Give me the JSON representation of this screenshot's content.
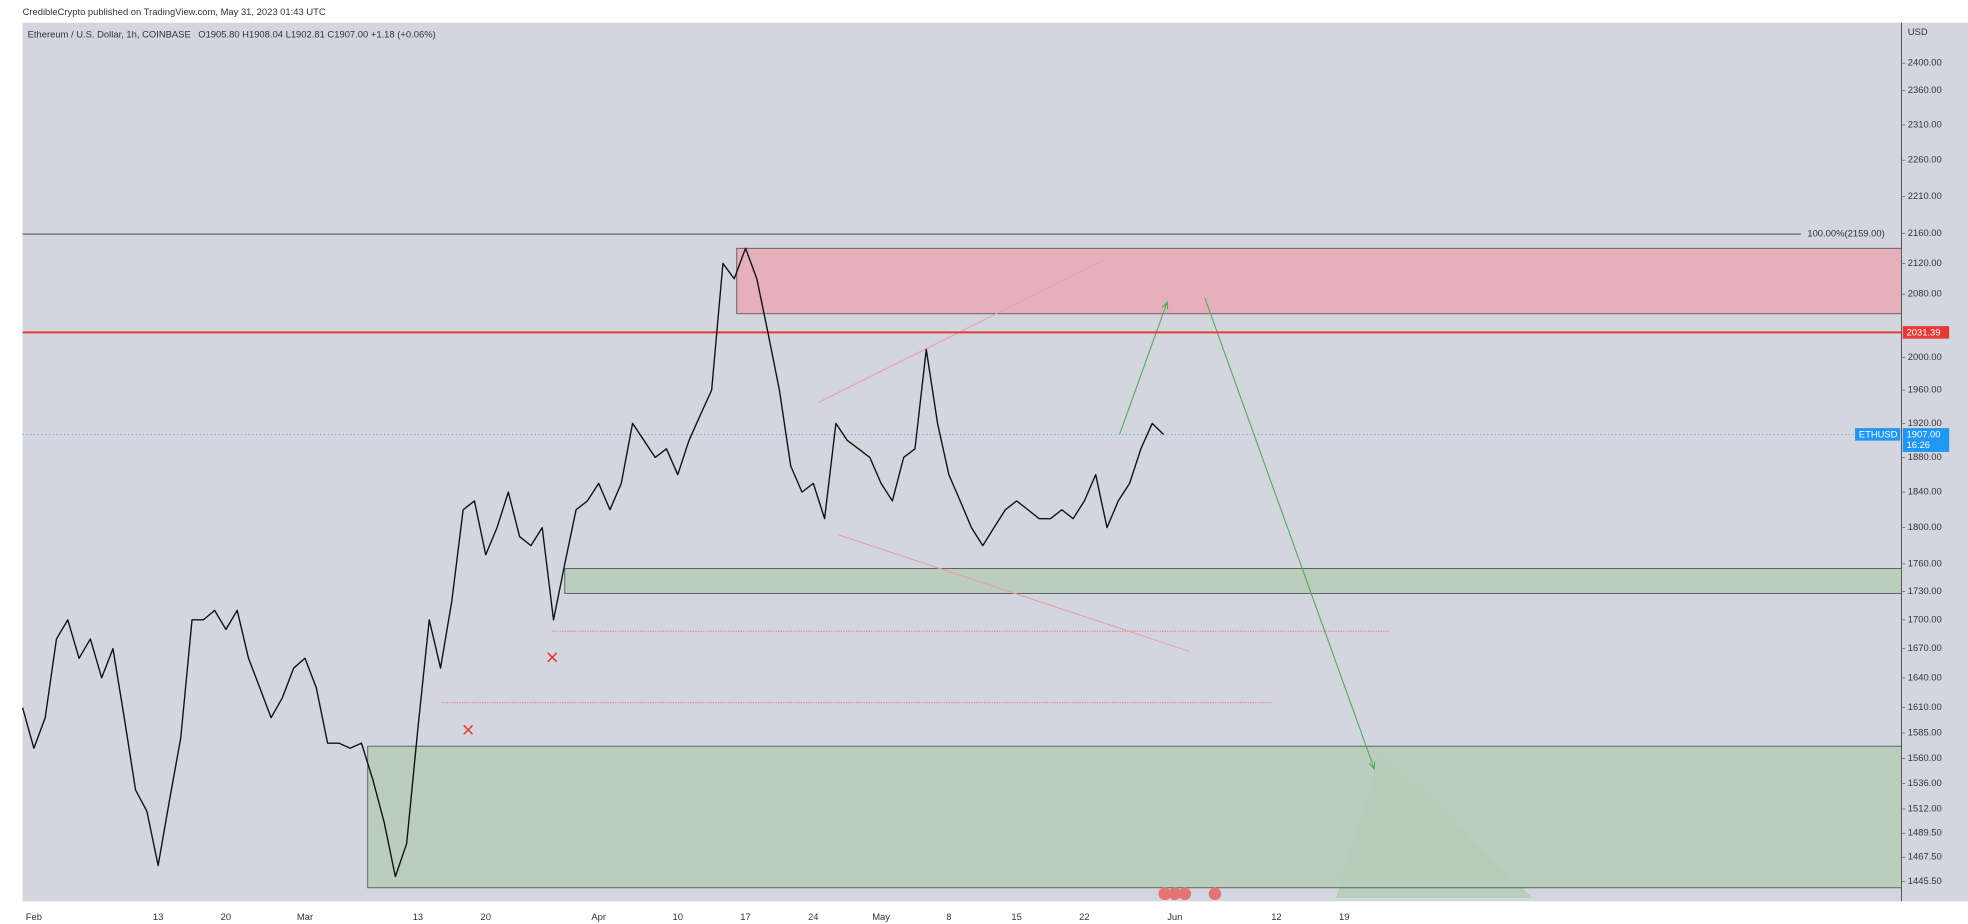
{
  "header": {
    "publisher": "CredibleCrypto published on TradingView.com, May 31, 2023 01:43 UTC"
  },
  "chart_data": {
    "type": "line",
    "ohlc": "O1905.80 H1908.04 L1902.81 C1907.00 +1.18 (+0.06%)",
    "y_axis_label": "USD",
    "log_scale": true,
    "ylim": [
      1428,
      2461
    ],
    "yticks": [
      {
        "value": 2400,
        "label": "2400.00"
      },
      {
        "value": 2360,
        "label": "2360.00"
      },
      {
        "value": 2310,
        "label": "2310.00"
      },
      {
        "value": 2260,
        "label": "2260.00"
      },
      {
        "value": 2210,
        "label": "2210.00"
      },
      {
        "value": 2160,
        "label": "2160.00"
      },
      {
        "value": 2120,
        "label": "2120.00"
      },
      {
        "value": 2080,
        "label": "2080.00"
      },
      {
        "value": 2000,
        "label": "2000.00"
      },
      {
        "value": 1960,
        "label": "1960.00"
      },
      {
        "value": 1920,
        "label": "1920.00"
      },
      {
        "value": 1880,
        "label": "1880.00"
      },
      {
        "value": 1840,
        "label": "1840.00"
      },
      {
        "value": 1800,
        "label": "1800.00"
      },
      {
        "value": 1760,
        "label": "1760.00"
      },
      {
        "value": 1730,
        "label": "1730.00"
      },
      {
        "value": 1700,
        "label": "1700.00"
      },
      {
        "value": 1670,
        "label": "1670.00"
      },
      {
        "value": 1640,
        "label": "1640.00"
      },
      {
        "value": 1610,
        "label": "1610.00"
      },
      {
        "value": 1585,
        "label": "1585.00"
      },
      {
        "value": 1560,
        "label": "1560.00"
      },
      {
        "value": 1536,
        "label": "1536.00"
      },
      {
        "value": 1512,
        "label": "1512.00"
      },
      {
        "value": 1489.5,
        "label": "1489.50"
      },
      {
        "value": 1467.5,
        "label": "1467.50"
      },
      {
        "value": 1445.5,
        "label": "1445.50"
      }
    ],
    "categories": [
      null,
      "Feb",
      null,
      null,
      null,
      null,
      null,
      null,
      null,
      null,
      null,
      null,
      "13",
      null,
      null,
      null,
      null,
      null,
      "20",
      null,
      null,
      null,
      null,
      null,
      null,
      "Mar",
      null,
      null,
      null,
      null,
      null,
      null,
      null,
      null,
      null,
      "13",
      null,
      null,
      null,
      null,
      null,
      "20",
      null,
      null,
      null,
      null,
      null,
      null,
      null,
      null,
      null,
      "Apr",
      null,
      null,
      null,
      null,
      null,
      null,
      "10",
      null,
      null,
      null,
      null,
      null,
      "17",
      null,
      null,
      null,
      null,
      null,
      "24",
      null,
      null,
      null,
      null,
      null,
      "May",
      null,
      null,
      null,
      null,
      null,
      "8",
      null,
      null,
      null,
      null,
      null,
      "15",
      null,
      null,
      null,
      null,
      null,
      "22",
      null,
      null,
      null,
      null,
      null,
      null,
      null,
      "Jun",
      null,
      null,
      null,
      null,
      null,
      null,
      null,
      null,
      "12",
      null,
      null,
      null,
      null,
      null,
      "19"
    ],
    "series": [
      {
        "name": "Ethereum / U.S. Dollar, 1h, COINBASE",
        "color": "#111111",
        "values": [
          1610,
          1570,
          1600,
          1680,
          1700,
          1660,
          1680,
          1640,
          1670,
          1600,
          1530,
          1510,
          1460,
          1520,
          1580,
          1700,
          1700,
          1710,
          1690,
          1710,
          1660,
          1630,
          1600,
          1620,
          1650,
          1660,
          1630,
          1575,
          1575,
          1570,
          1575,
          1540,
          1500,
          1450,
          1480,
          1590,
          1700,
          1650,
          1720,
          1820,
          1830,
          1770,
          1800,
          1840,
          1790,
          1780,
          1800,
          1700,
          1760,
          1820,
          1830,
          1850,
          1820,
          1850,
          1920,
          1900,
          1880,
          1890,
          1860,
          1900,
          1930,
          1960,
          2120,
          2100,
          2140,
          2100,
          2030,
          1960,
          1870,
          1840,
          1850,
          1810,
          1920,
          1900,
          1890,
          1880,
          1850,
          1830,
          1880,
          1890,
          2010,
          1920,
          1860,
          1830,
          1800,
          1780,
          1800,
          1820,
          1830,
          1820,
          1810,
          1810,
          1820,
          1810,
          1830,
          1860,
          1800,
          1830,
          1850,
          1890,
          1920,
          1907,
          null,
          null,
          null,
          null,
          null,
          null,
          null,
          null,
          null,
          null,
          null,
          null,
          null,
          null,
          null,
          null
        ]
      }
    ],
    "fib_level": {
      "value": 2159,
      "label": "100.00%(2159.00)"
    },
    "resistance": {
      "value": 2031.39,
      "color": "#e53935"
    },
    "last_price": {
      "value": 1907,
      "label": "1907.00",
      "symbol": "ETHUSD",
      "countdown": "16:26",
      "color": "#2196f3"
    },
    "zones": [
      {
        "top": 2140,
        "bottom": 2055,
        "color": "#e7a9b5"
      },
      {
        "top": 1755,
        "bottom": 1728,
        "color": "#b6cdb8"
      },
      {
        "top": 1572,
        "bottom": 1440,
        "color": "#b6cdb8"
      }
    ],
    "levels": [
      1688,
      1615
    ],
    "trendlines": [
      [
        1945,
        2125
      ],
      [
        1792,
        1667
      ]
    ],
    "projection": [
      [
        1907,
        2070
      ],
      [
        2075,
        1550
      ]
    ],
    "invalidations": [
      1661,
      1588
    ]
  }
}
